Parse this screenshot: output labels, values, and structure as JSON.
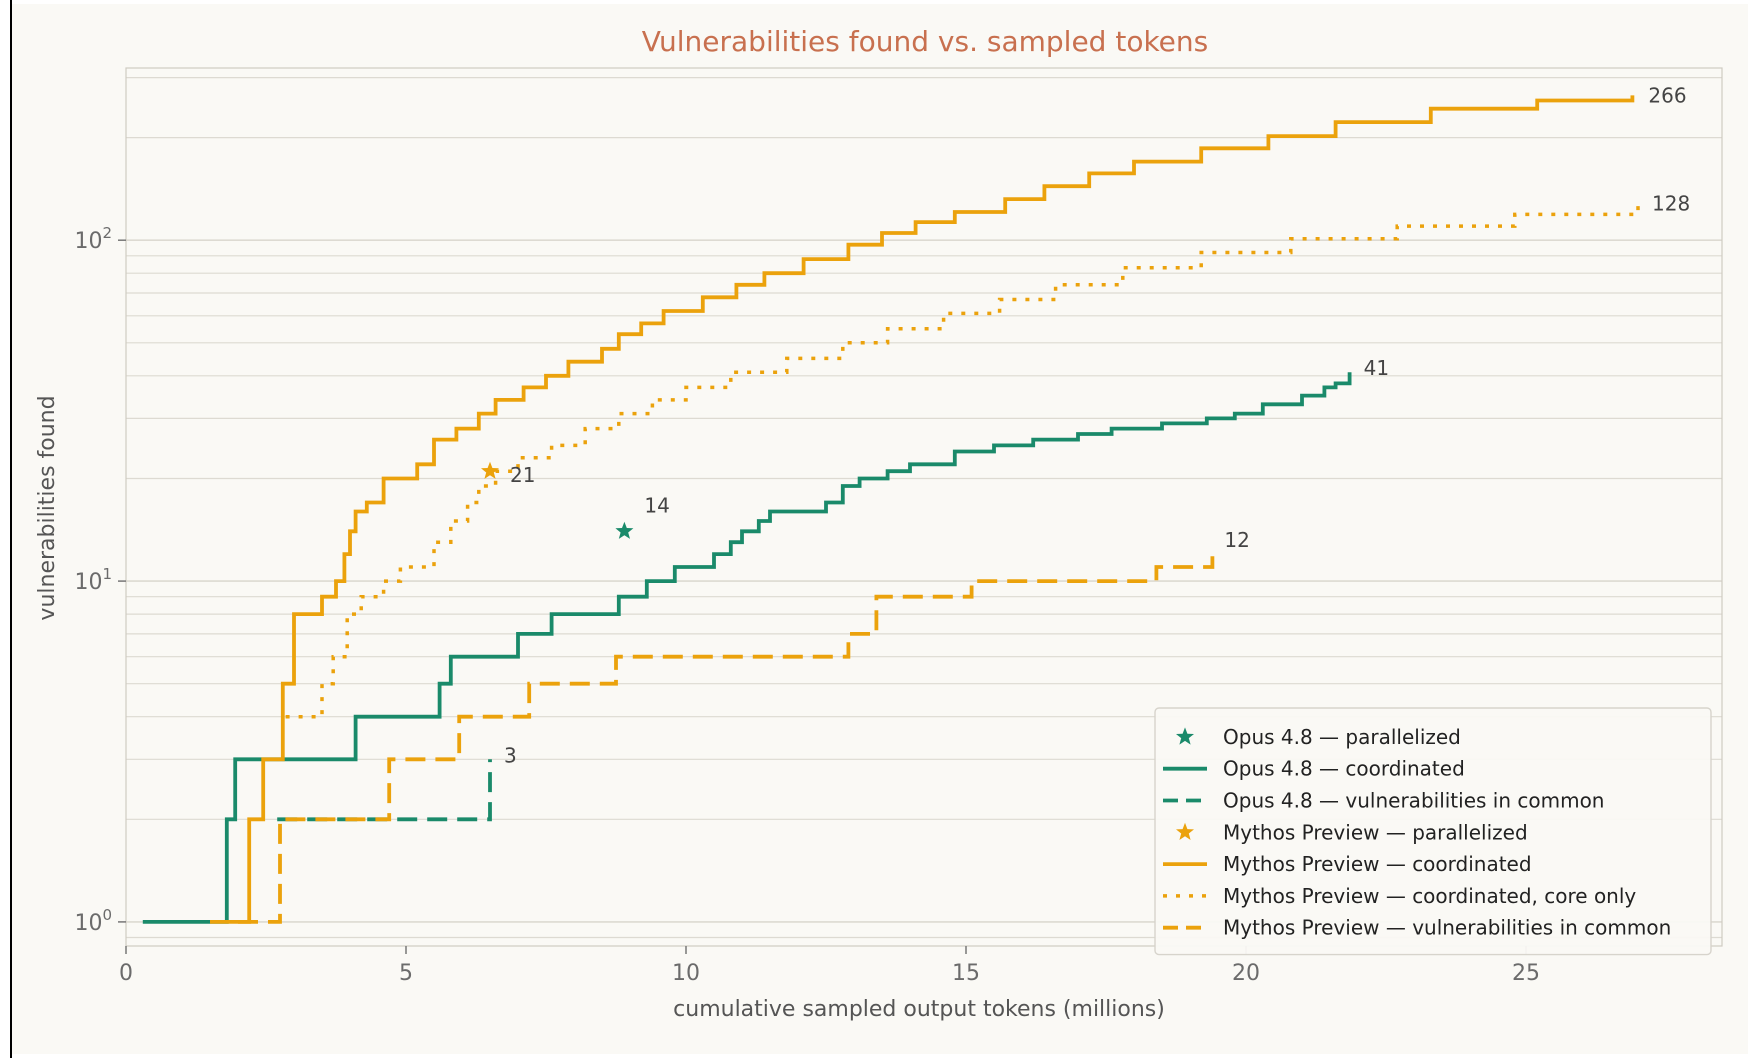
{
  "colors": {
    "green": "#1a8a6a",
    "orange": "#eba20c",
    "grid": "#dddad2",
    "panel": "#faf9f5",
    "title": "#c8704f"
  },
  "chart_data": {
    "type": "line",
    "title": "Vulnerabilities found vs. sampled tokens",
    "xlabel": "cumulative sampled output tokens (millions)",
    "ylabel": "vulnerabilities found",
    "xlim": [
      0,
      28.5
    ],
    "ylim": [
      0.85,
      320
    ],
    "yscale": "log",
    "grid": "horizontal",
    "legend_position": "lower-right",
    "x_ticks": [
      {
        "value": 0,
        "label": "0"
      },
      {
        "value": 5,
        "label": "5"
      },
      {
        "value": 10,
        "label": "10"
      },
      {
        "value": 15,
        "label": "15"
      },
      {
        "value": 20,
        "label": "20"
      },
      {
        "value": 25,
        "label": "25"
      }
    ],
    "y_ticks": [
      {
        "value": 1,
        "base": "10",
        "exp": "0"
      },
      {
        "value": 10,
        "base": "10",
        "exp": "1"
      },
      {
        "value": 100,
        "base": "10",
        "exp": "2"
      }
    ],
    "series": [
      {
        "name": "Opus 4.8 — parallelized",
        "kind": "marker",
        "color": "green",
        "marker": "star",
        "x": [
          8.9
        ],
        "y": [
          14
        ],
        "label": "14"
      },
      {
        "name": "Opus 4.8 — coordinated",
        "kind": "step",
        "color": "green",
        "dash": "solid",
        "x": [
          0.3,
          1.8,
          1.95,
          2.55,
          4.1,
          5.6,
          5.8,
          6.4,
          7.0,
          7.6,
          8.8,
          9.3,
          9.8,
          10.5,
          10.8,
          11.0,
          11.3,
          11.5,
          12.5,
          12.8,
          13.1,
          13.6,
          14.0,
          14.8,
          15.5,
          16.2,
          17.0,
          17.6,
          18.5,
          19.3,
          19.8,
          20.3,
          21.0,
          21.4,
          21.6,
          21.85
        ],
        "y": [
          1,
          2,
          3,
          3,
          4,
          5,
          6,
          6,
          7,
          8,
          9,
          10,
          11,
          12,
          13,
          14,
          15,
          16,
          17,
          19,
          20,
          21,
          22,
          24,
          25,
          26,
          27,
          28,
          29,
          30,
          31,
          33,
          35,
          37,
          38,
          41
        ],
        "label": "41"
      },
      {
        "name": "Opus 4.8 — vulnerabilities in common",
        "kind": "step",
        "color": "green",
        "dash": "dashed",
        "x": [
          2.7,
          6.5,
          6.5
        ],
        "y": [
          2,
          2,
          3
        ],
        "label": "3"
      },
      {
        "name": "Mythos Preview — parallelized",
        "kind": "marker",
        "color": "orange",
        "marker": "star",
        "x": [
          6.5
        ],
        "y": [
          21
        ],
        "label": "21"
      },
      {
        "name": "Mythos Preview — coordinated",
        "kind": "step",
        "color": "orange",
        "dash": "solid",
        "x": [
          1.5,
          2.2,
          2.45,
          2.8,
          3.0,
          3.5,
          3.75,
          3.9,
          4.0,
          4.1,
          4.3,
          4.6,
          5.2,
          5.5,
          5.9,
          6.3,
          6.6,
          7.1,
          7.5,
          7.9,
          8.5,
          8.8,
          9.2,
          9.6,
          10.3,
          10.9,
          11.4,
          12.1,
          12.9,
          13.5,
          14.1,
          14.8,
          15.7,
          16.4,
          17.2,
          18.0,
          19.2,
          20.4,
          21.6,
          23.3,
          25.2,
          26.9
        ],
        "y": [
          1,
          2,
          3,
          5,
          8,
          9,
          10,
          12,
          14,
          16,
          17,
          20,
          22,
          26,
          28,
          31,
          34,
          37,
          40,
          44,
          48,
          53,
          57,
          62,
          68,
          74,
          80,
          88,
          97,
          105,
          113,
          121,
          132,
          144,
          157,
          170,
          186,
          202,
          222,
          243,
          257,
          266
        ],
        "label": "266"
      },
      {
        "name": "Mythos Preview — coordinated, core only",
        "kind": "step",
        "color": "orange",
        "dash": "dotted",
        "x": [
          2.85,
          3.5,
          3.7,
          3.95,
          4.2,
          4.6,
          4.9,
          5.5,
          5.8,
          6.1,
          6.3,
          6.6,
          7.0,
          7.6,
          8.2,
          8.8,
          9.4,
          10.0,
          10.8,
          11.8,
          12.8,
          13.6,
          14.6,
          15.6,
          16.6,
          17.8,
          19.2,
          20.8,
          22.7,
          24.8,
          27.0
        ],
        "y": [
          4,
          5,
          6,
          8,
          9,
          10,
          11,
          13,
          15,
          17,
          19,
          21,
          23,
          25,
          28,
          31,
          34,
          37,
          41,
          45,
          50,
          55,
          61,
          67,
          74,
          83,
          92,
          101,
          110,
          119,
          128
        ],
        "label": "128"
      },
      {
        "name": "Mythos Preview — vulnerabilities in common",
        "kind": "step",
        "color": "orange",
        "dash": "dashed",
        "x": [
          2.0,
          2.75,
          4.7,
          5.95,
          7.2,
          8.75,
          12.9,
          13.4,
          15.1,
          18.4,
          19.4
        ],
        "y": [
          1,
          2,
          3,
          4,
          5,
          6,
          7,
          9,
          10,
          11,
          12
        ],
        "label": "12"
      }
    ]
  }
}
